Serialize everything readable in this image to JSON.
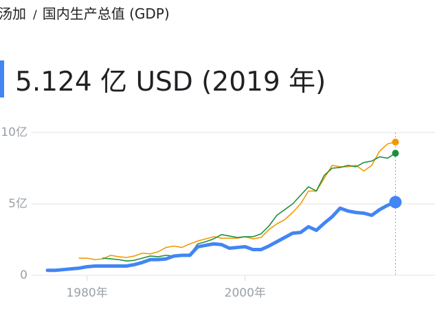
{
  "breadcrumb": [
    "汤加",
    "国内生产总值 (GDP)"
  ],
  "breadcrumb_separator": "/",
  "headline": "5.124 亿 USD (2019 年)",
  "chart_data": {
    "type": "line",
    "x": [
      1975,
      1976,
      1977,
      1978,
      1979,
      1980,
      1981,
      1982,
      1983,
      1984,
      1985,
      1986,
      1987,
      1988,
      1989,
      1990,
      1991,
      1992,
      1993,
      1994,
      1995,
      1996,
      1997,
      1998,
      1999,
      2000,
      2001,
      2002,
      2003,
      2004,
      2005,
      2006,
      2007,
      2008,
      2009,
      2010,
      2011,
      2012,
      2013,
      2014,
      2015,
      2016,
      2017,
      2018,
      2019
    ],
    "series": [
      {
        "color": "#f29900",
        "values": [
          null,
          null,
          null,
          null,
          1.2,
          1.2,
          1.1,
          1.15,
          1.4,
          1.3,
          1.25,
          1.35,
          1.55,
          1.5,
          1.65,
          1.95,
          2.05,
          1.95,
          2.2,
          2.4,
          2.55,
          2.7,
          2.6,
          2.6,
          2.6,
          2.7,
          2.55,
          2.65,
          3.2,
          3.6,
          3.9,
          4.4,
          5.0,
          5.9,
          5.9,
          6.8,
          7.7,
          7.6,
          7.6,
          7.7,
          7.3,
          7.7,
          8.7,
          9.2,
          9.33
        ]
      },
      {
        "color": "#1e8e3e",
        "values": [
          null,
          null,
          null,
          null,
          null,
          null,
          null,
          1.2,
          1.15,
          1.1,
          1.0,
          1.05,
          1.2,
          1.35,
          1.3,
          1.4,
          1.35,
          1.4,
          1.45,
          2.2,
          2.35,
          2.55,
          2.85,
          2.75,
          2.65,
          2.7,
          2.7,
          2.9,
          3.45,
          4.2,
          4.6,
          5.0,
          5.6,
          6.2,
          5.9,
          7.0,
          7.5,
          7.55,
          7.7,
          7.6,
          7.9,
          8.0,
          8.3,
          8.2,
          8.55
        ]
      },
      {
        "color": "#4285f4",
        "values": [
          0.35,
          0.35,
          0.4,
          0.45,
          0.5,
          0.6,
          0.65,
          0.65,
          0.65,
          0.65,
          0.65,
          0.75,
          0.9,
          1.1,
          1.1,
          1.15,
          1.35,
          1.4,
          1.4,
          2.0,
          2.1,
          2.2,
          2.15,
          1.9,
          1.95,
          2.0,
          1.8,
          1.8,
          2.05,
          2.35,
          2.65,
          2.95,
          3.0,
          3.4,
          3.15,
          3.65,
          4.1,
          4.7,
          4.5,
          4.4,
          4.35,
          4.2,
          4.6,
          4.9,
          5.124
        ]
      }
    ],
    "xlim": [
      1969,
      2024
    ],
    "xticks": [
      {
        "value": 1980,
        "label": "1980年"
      },
      {
        "value": 2000,
        "label": "2000年"
      }
    ],
    "ylim": [
      0,
      10
    ],
    "yticks": [
      0,
      {
        "value": 5,
        "label": "5亿"
      },
      {
        "value": 10,
        "label": "10亿"
      }
    ],
    "grid": true
  }
}
